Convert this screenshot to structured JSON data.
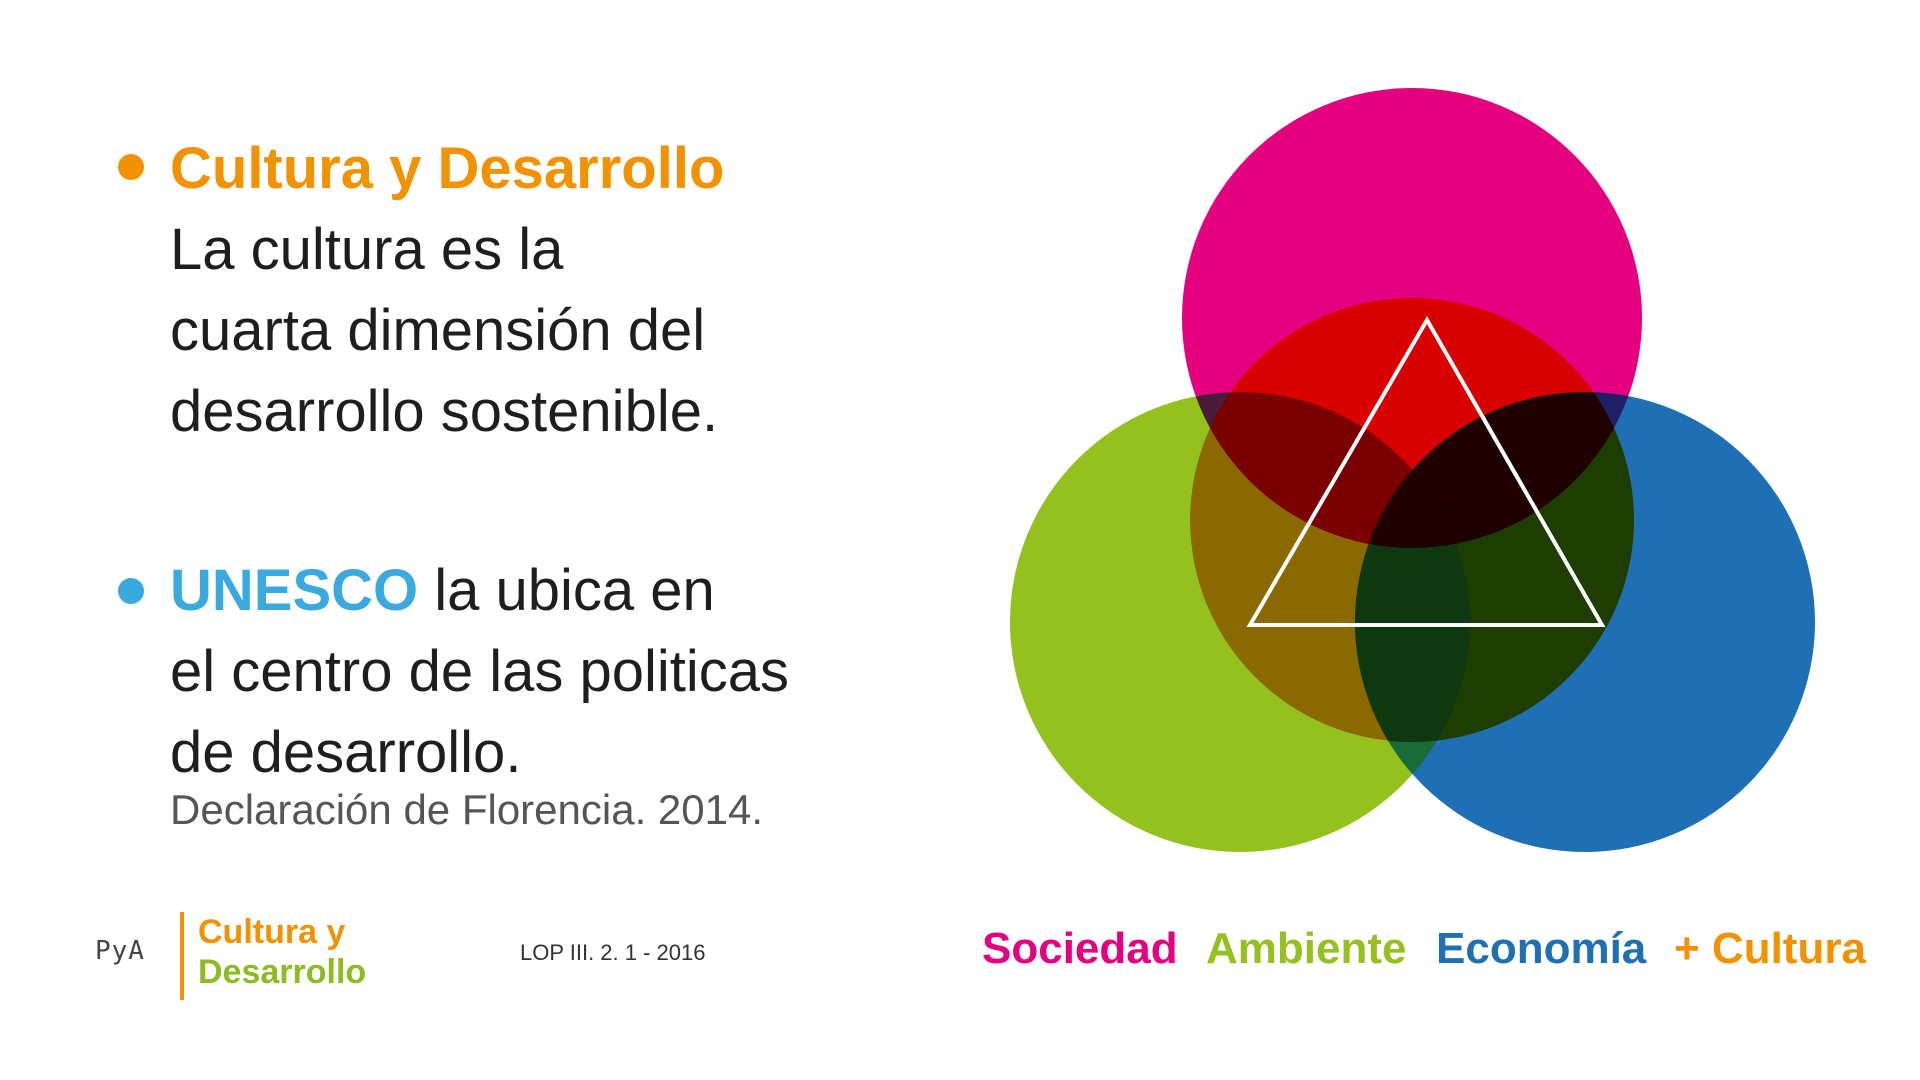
{
  "section1": {
    "heading": "Cultura y Desarrollo",
    "lines": [
      "La cultura es la",
      "cuarta dimensión del",
      "desarrollo sostenible."
    ]
  },
  "section2": {
    "heading": "UNESCO",
    "first_line_rest": " la ubica en",
    "lines": [
      "el centro de las politicas",
      "de desarrollo."
    ],
    "citation": "Declaración de Florencia. 2014."
  },
  "footer": {
    "pya": "PyA",
    "logo_line1": "Cultura y",
    "logo_line2": "Desarrollo",
    "reference": "LOP III. 2. 1 - 2016"
  },
  "legend": {
    "sociedad": "Sociedad",
    "ambiente": "Ambiente",
    "economia": "Economía",
    "cultura": "+ Cultura"
  },
  "colors": {
    "orange": "#f39200",
    "light_blue": "#3aa9e0",
    "magenta": "#e4007f",
    "green": "#95c11f",
    "blue": "#1f6fb5",
    "red": "#d90000"
  },
  "icons": {
    "bullet": "filled-circle",
    "diagram": "venn-four-circles-with-triangle"
  }
}
